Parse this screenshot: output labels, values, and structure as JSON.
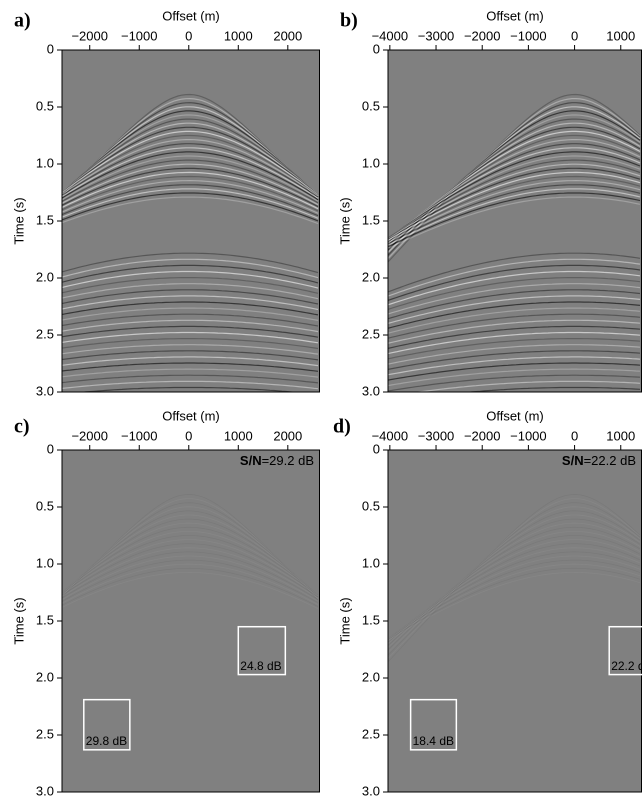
{
  "chart_data": [
    {
      "type": "image",
      "panel_label": "a)",
      "x_label": "Offset (m)",
      "y_label": "Time (s)",
      "xlim": [
        -2560,
        2650
      ],
      "ylim": [
        0,
        3
      ],
      "xticks": [
        {
          "value": -2000,
          "label": "−2000"
        },
        {
          "value": -1000,
          "label": "−1000"
        },
        0,
        1000,
        2000
      ],
      "yticks": [
        0,
        0.5,
        {
          "value": 1,
          "label": "1.0"
        },
        1.5,
        {
          "value": 2,
          "label": "2.0"
        },
        2.5,
        {
          "value": 3,
          "label": "3.0"
        }
      ]
    },
    {
      "type": "image",
      "panel_label": "b)",
      "x_label": "Offset (m)",
      "y_label": "Time (s)",
      "xlim": [
        -4040,
        1460
      ],
      "ylim": [
        0,
        3
      ],
      "xticks": [
        {
          "value": -4000,
          "label": "−4000"
        },
        {
          "value": -3000,
          "label": "−3000"
        },
        {
          "value": -2000,
          "label": "−2000"
        },
        {
          "value": -1000,
          "label": "−1000"
        },
        0,
        1000
      ],
      "yticks": [
        0,
        0.5,
        {
          "value": 1,
          "label": "1.0"
        },
        1.5,
        {
          "value": 2,
          "label": "2.0"
        },
        2.5,
        {
          "value": 3,
          "label": "3.0"
        }
      ]
    },
    {
      "type": "image",
      "panel_label": "c)",
      "x_label": "Offset (m)",
      "y_label": "Time (s)",
      "xlim": [
        -2560,
        2650
      ],
      "ylim": [
        0,
        3
      ],
      "xticks": [
        {
          "value": -2000,
          "label": "−2000"
        },
        {
          "value": -1000,
          "label": "−1000"
        },
        0,
        1000,
        2000
      ],
      "yticks": [
        0,
        0.5,
        {
          "value": 1,
          "label": "1.0"
        },
        1.5,
        {
          "value": 2,
          "label": "2.0"
        },
        2.5,
        {
          "value": 3,
          "label": "3.0"
        }
      ],
      "snr_label": "S/N",
      "snr_text": "=29.2 dB",
      "regions": [
        {
          "label": "24.8 dB",
          "offset": [
            1000,
            1950
          ],
          "time": [
            1.55,
            1.97
          ]
        },
        {
          "label": "29.8 dB",
          "offset": [
            -2120,
            -1190
          ],
          "time": [
            2.19,
            2.63
          ]
        }
      ]
    },
    {
      "type": "image",
      "panel_label": "d)",
      "x_label": "Offset (m)",
      "y_label": "Time (s)",
      "xlim": [
        -4040,
        1460
      ],
      "ylim": [
        0,
        3
      ],
      "xticks": [
        {
          "value": -4000,
          "label": "−4000"
        },
        {
          "value": -3000,
          "label": "−3000"
        },
        {
          "value": -2000,
          "label": "−2000"
        },
        {
          "value": -1000,
          "label": "−1000"
        },
        0,
        1000
      ],
      "yticks": [
        0,
        0.5,
        {
          "value": 1,
          "label": "1.0"
        },
        1.5,
        {
          "value": 2,
          "label": "2.0"
        },
        2.5,
        {
          "value": 3,
          "label": "3.0"
        }
      ],
      "snr_label": "S/N",
      "snr_text": "=22.2 dB",
      "regions": [
        {
          "label": "22.2 dB",
          "offset": [
            750,
            1740
          ],
          "time": [
            1.55,
            1.97
          ]
        },
        {
          "label": "18.4 dB",
          "offset": [
            -3550,
            -2560
          ],
          "time": [
            2.19,
            2.63
          ]
        }
      ]
    }
  ]
}
